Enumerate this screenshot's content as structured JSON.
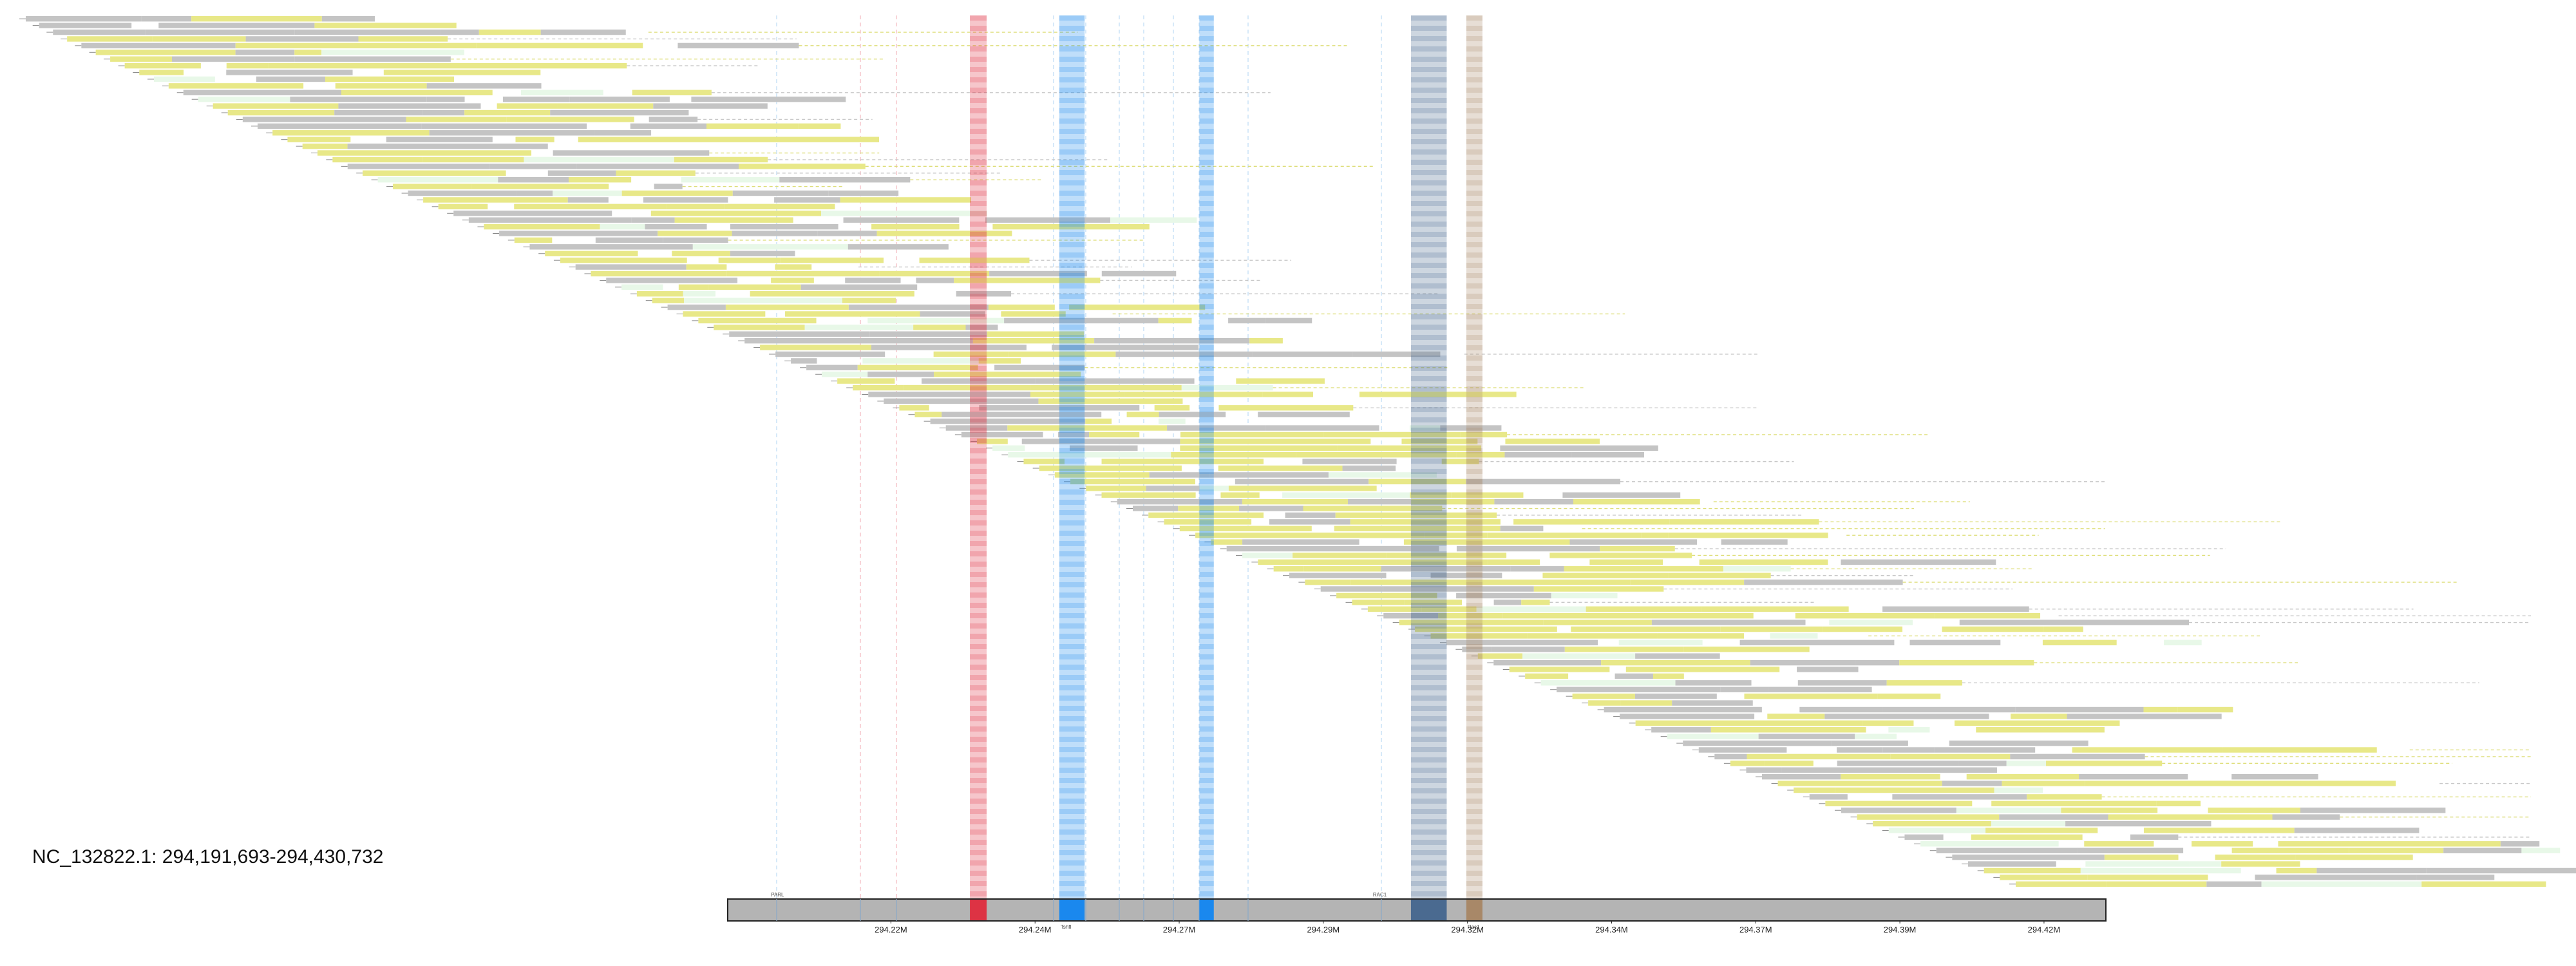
{
  "region": {
    "label": "NC_132822.1: 294,191,693-294,430,732",
    "start": 294191693,
    "end": 294430732
  },
  "axis": {
    "ticks": [
      {
        "label": "294.22M",
        "value": 294220000
      },
      {
        "label": "294.24M",
        "value": 294245000
      },
      {
        "label": "294.27M",
        "value": 294270000
      },
      {
        "label": "294.29M",
        "value": 294295000
      },
      {
        "label": "294.32M",
        "value": 294320000
      },
      {
        "label": "294.34M",
        "value": 294345000
      },
      {
        "label": "294.37M",
        "value": 294370000
      },
      {
        "label": "294.39M",
        "value": 294395000
      },
      {
        "label": "294.42M",
        "value": 294420000
      }
    ]
  },
  "colors": {
    "chromosome_bar": "#b4b4b4",
    "alignment_yellow": "#e8e888",
    "alignment_gray": "#c4c4c4",
    "gap_green": "#e8f8e8",
    "red_feature": "#dd3344",
    "blue_feature": "#1a88ee",
    "steel_feature": "#4a6a90",
    "tan_feature": "#a88868"
  },
  "features": [
    {
      "name": "red-exon-band",
      "start": 294233700,
      "end": 294236600,
      "color": "#dd3344",
      "label": ""
    },
    {
      "name": "blue-exon-band-1",
      "start": 294249200,
      "end": 294253600,
      "color": "#1a88ee",
      "label": "Tshfl"
    },
    {
      "name": "blue-exon-band-2",
      "start": 294273500,
      "end": 294276000,
      "color": "#1a88ee",
      "label": ""
    },
    {
      "name": "steel-exon-band",
      "start": 294310200,
      "end": 294316400,
      "color": "#4a6a90",
      "label": ""
    },
    {
      "name": "tan-exon-band",
      "start": 294319800,
      "end": 294322600,
      "color": "#a88868",
      "label": "Rac1"
    }
  ],
  "minor_labels": [
    {
      "text": "PARL",
      "value": 294199200
    },
    {
      "text": "RAC1",
      "value": 294303600
    }
  ],
  "alignment_panel": {
    "row_count": 130,
    "first_read_start": 294065000,
    "last_read_start": 294405000
  }
}
